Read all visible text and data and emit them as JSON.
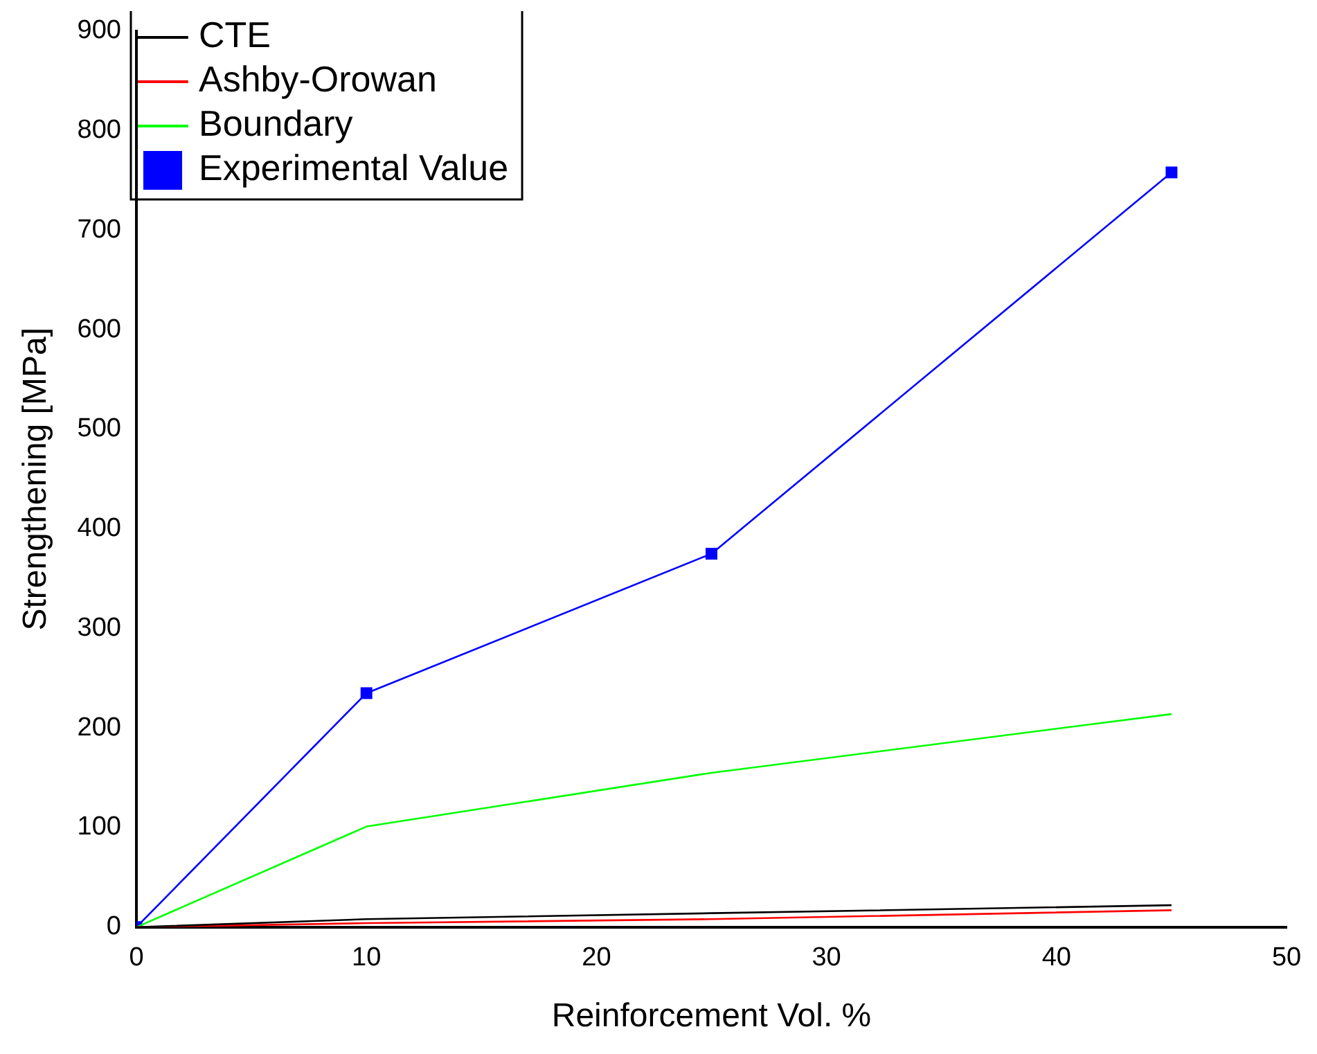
{
  "chart_data": {
    "type": "line",
    "xlabel": "Reinforcement Vol. %",
    "ylabel": "Strengthening [MPa]",
    "x": [
      0,
      10,
      25,
      45
    ],
    "series": [
      {
        "name": "CTE",
        "color": "#000000",
        "values": [
          0,
          8,
          14,
          22
        ],
        "marker": "none"
      },
      {
        "name": "Ashby-Orowan",
        "color": "#ff0000",
        "values": [
          0,
          4,
          8,
          17
        ],
        "marker": "none"
      },
      {
        "name": "Boundary",
        "color": "#00ff00",
        "values": [
          0,
          101,
          155,
          214
        ],
        "marker": "none"
      },
      {
        "name": "Experimental Value",
        "color": "#0000ff",
        "values": [
          0,
          235,
          375,
          758
        ],
        "marker": "square"
      }
    ],
    "xlim": [
      0,
      50
    ],
    "xticks": [
      0,
      10,
      20,
      30,
      40,
      50
    ],
    "ylim": [
      0,
      900
    ],
    "yticks": [
      0,
      100,
      200,
      300,
      400,
      500,
      600,
      700,
      800,
      900
    ],
    "grid": false,
    "legend": "top left",
    "line_style": "solid"
  }
}
